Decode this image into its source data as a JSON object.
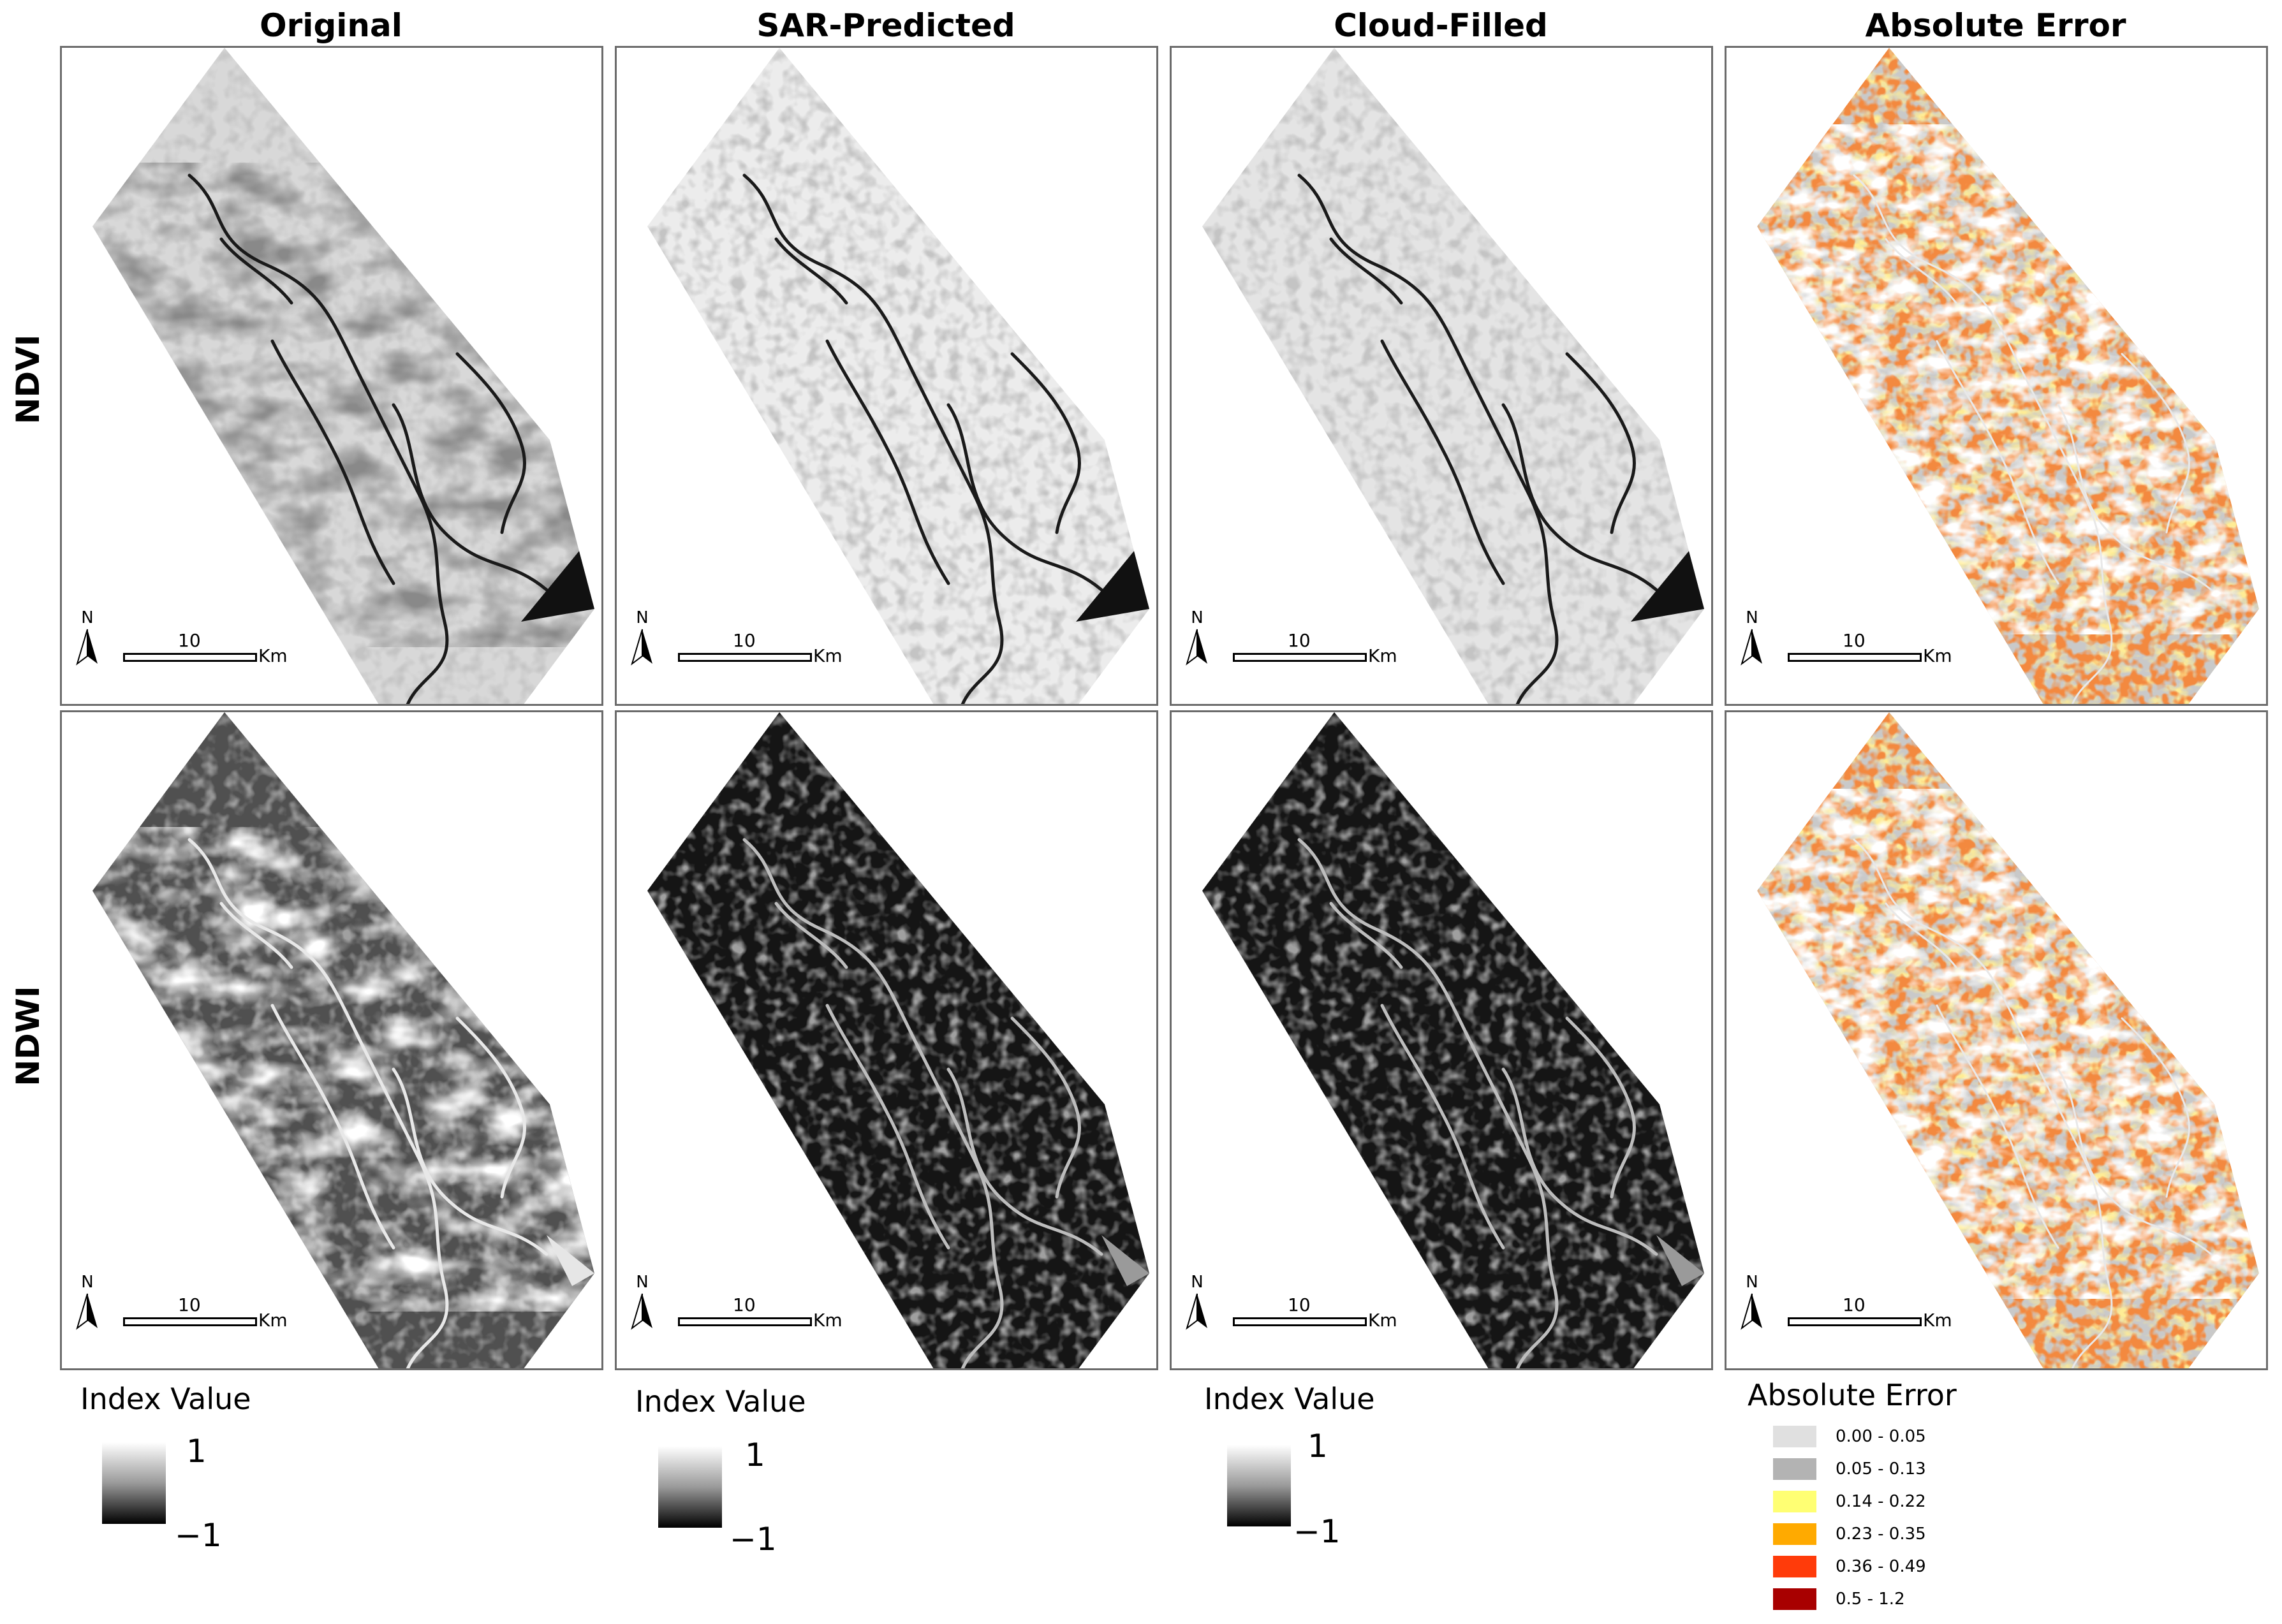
{
  "columns": [
    "Original",
    "SAR-Predicted",
    "Cloud-Filled",
    "Absolute Error"
  ],
  "rows": [
    "NDVI",
    "NDWI"
  ],
  "map": {
    "north_label": "N",
    "scale_value": "10",
    "scale_unit": "Km"
  },
  "index_legend": {
    "title": "Index Value",
    "high": "1",
    "low": "−1"
  },
  "error_legend": {
    "title": "Absolute Error",
    "classes": [
      {
        "label": "0.00 - 0.05",
        "color": "#e0e0e0"
      },
      {
        "label": "0.05 - 0.13",
        "color": "#b3b3b3"
      },
      {
        "label": "0.14 - 0.22",
        "color": "#ffff73"
      },
      {
        "label": "0.23 - 0.35",
        "color": "#ffaa00"
      },
      {
        "label": "0.36 - 0.49",
        "color": "#ff3b0a"
      },
      {
        "label": "0.5 - 1.2",
        "color": "#a80000"
      }
    ]
  }
}
